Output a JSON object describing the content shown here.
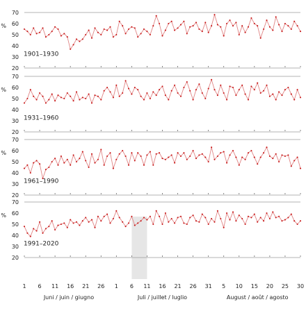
{
  "chart_data": {
    "type": "line",
    "unit": "%",
    "y_ticks": [
      20,
      30,
      40,
      50,
      60,
      70
    ],
    "ylim": [
      20,
      70
    ],
    "x_ticks": [
      {
        "day": 1,
        "label": "1"
      },
      {
        "day": 6,
        "label": "6"
      },
      {
        "day": 11,
        "label": "11"
      },
      {
        "day": 16,
        "label": "16"
      },
      {
        "day": 21,
        "label": "21"
      },
      {
        "day": 26,
        "label": "26"
      },
      {
        "day": 31,
        "label": "1"
      },
      {
        "day": 36,
        "label": "6"
      },
      {
        "day": 41,
        "label": "11"
      },
      {
        "day": 46,
        "label": "16"
      },
      {
        "day": 51,
        "label": "21"
      },
      {
        "day": 56,
        "label": "26"
      },
      {
        "day": 61,
        "label": "31"
      },
      {
        "day": 66,
        "label": "5"
      },
      {
        "day": 71,
        "label": "10"
      },
      {
        "day": 76,
        "label": "15"
      },
      {
        "day": 81,
        "label": "20"
      },
      {
        "day": 86,
        "label": "25"
      },
      {
        "day": 91,
        "label": "30"
      }
    ],
    "months": [
      {
        "label": "Juni / juin / giugno"
      },
      {
        "label": "Juli / juillet / luglio"
      },
      {
        "label": "August / août / agosto"
      }
    ],
    "highlight_days": [
      36,
      41
    ],
    "panels": [
      {
        "period": "1901–1930",
        "values": [
          55,
          53,
          50,
          56,
          51,
          52,
          56,
          48,
          50,
          53,
          57,
          55,
          49,
          51,
          48,
          37,
          41,
          46,
          44,
          46,
          50,
          54,
          47,
          56,
          52,
          50,
          55,
          54,
          57,
          48,
          50,
          62,
          58,
          51,
          55,
          57,
          56,
          48,
          51,
          55,
          53,
          50,
          58,
          67,
          60,
          49,
          54,
          60,
          62,
          54,
          56,
          59,
          62,
          51,
          57,
          58,
          61,
          55,
          53,
          61,
          52,
          58,
          68,
          59,
          57,
          49,
          60,
          63,
          58,
          61,
          50,
          58,
          52,
          57,
          65,
          60,
          58,
          47,
          55,
          63,
          57,
          54,
          66,
          59,
          53,
          60,
          58,
          55,
          62,
          58,
          53
        ]
      },
      {
        "period": "1931–1960",
        "values": [
          46,
          50,
          58,
          52,
          49,
          55,
          52,
          46,
          49,
          54,
          48,
          53,
          51,
          50,
          55,
          52,
          48,
          56,
          49,
          51,
          50,
          54,
          46,
          53,
          52,
          49,
          57,
          60,
          56,
          51,
          62,
          52,
          55,
          66,
          59,
          54,
          60,
          58,
          52,
          49,
          55,
          50,
          56,
          53,
          58,
          61,
          53,
          49,
          57,
          62,
          55,
          52,
          60,
          65,
          57,
          49,
          58,
          63,
          55,
          50,
          59,
          67,
          58,
          53,
          62,
          55,
          49,
          61,
          60,
          53,
          58,
          62,
          54,
          49,
          61,
          58,
          64,
          55,
          57,
          62,
          52,
          54,
          49,
          56,
          53,
          58,
          60,
          54,
          49,
          58,
          51
        ]
      },
      {
        "period": "1961–1990",
        "values": [
          44,
          47,
          40,
          49,
          51,
          48,
          35,
          43,
          45,
          50,
          53,
          47,
          55,
          49,
          52,
          47,
          56,
          50,
          53,
          59,
          51,
          45,
          57,
          49,
          52,
          61,
          47,
          55,
          58,
          44,
          52,
          57,
          60,
          55,
          47,
          58,
          51,
          58,
          55,
          47,
          56,
          59,
          47,
          57,
          58,
          53,
          52,
          54,
          56,
          49,
          58,
          55,
          58,
          52,
          55,
          60,
          53,
          56,
          57,
          54,
          50,
          63,
          52,
          55,
          58,
          59,
          49,
          56,
          60,
          54,
          47,
          54,
          52,
          58,
          60,
          54,
          48,
          54,
          58,
          63,
          55,
          53,
          57,
          50,
          56,
          55,
          56,
          46,
          51,
          54,
          44
        ]
      },
      {
        "period": "1991–2020",
        "values": [
          48,
          42,
          39,
          46,
          44,
          52,
          42,
          46,
          48,
          53,
          45,
          49,
          50,
          51,
          47,
          54,
          51,
          52,
          49,
          53,
          56,
          52,
          54,
          47,
          57,
          53,
          57,
          59,
          51,
          55,
          62,
          56,
          52,
          48,
          51,
          57,
          49,
          51,
          53,
          56,
          54,
          57,
          50,
          62,
          57,
          50,
          60,
          52,
          55,
          51,
          56,
          57,
          51,
          50,
          56,
          58,
          53,
          52,
          59,
          56,
          50,
          55,
          52,
          62,
          55,
          47,
          60,
          54,
          61,
          53,
          58,
          55,
          50,
          57,
          56,
          59,
          52,
          56,
          53,
          60,
          55,
          61,
          56,
          57,
          53,
          54,
          56,
          59,
          53,
          50,
          53
        ]
      }
    ]
  }
}
